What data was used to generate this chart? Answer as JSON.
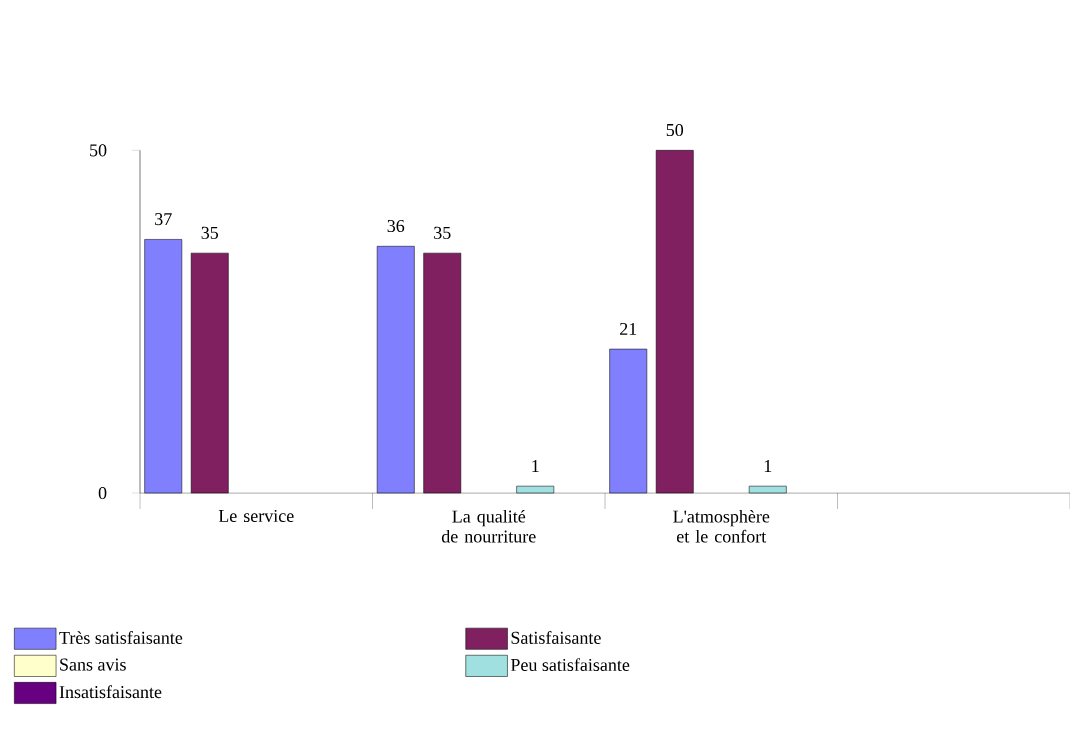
{
  "chart_data": {
    "type": "bar",
    "categories": [
      "Le service",
      "La qualité de nourriture",
      "L'atmosphère et le confort",
      null
    ],
    "series": [
      {
        "name": "Très satisfaisante",
        "color": "#8080ff",
        "values": [
          37,
          36,
          21,
          null
        ]
      },
      {
        "name": "Satisfaisante",
        "color": "#802060",
        "values": [
          35,
          35,
          50,
          null
        ]
      },
      {
        "name": "Sans avis",
        "color": "#ffffcc",
        "values": [
          null,
          null,
          null,
          null
        ]
      },
      {
        "name": "Peu satisfaisante",
        "color": "#a0e0e0",
        "values": [
          null,
          1,
          1,
          null
        ]
      },
      {
        "name": "Insatisfaisante",
        "color": "#660080",
        "values": [
          null,
          null,
          null,
          null
        ]
      }
    ],
    "ylim": [
      0,
      50
    ],
    "yticks": [
      0,
      50
    ],
    "data_labels": true,
    "grid": false,
    "legend": "bottom"
  }
}
